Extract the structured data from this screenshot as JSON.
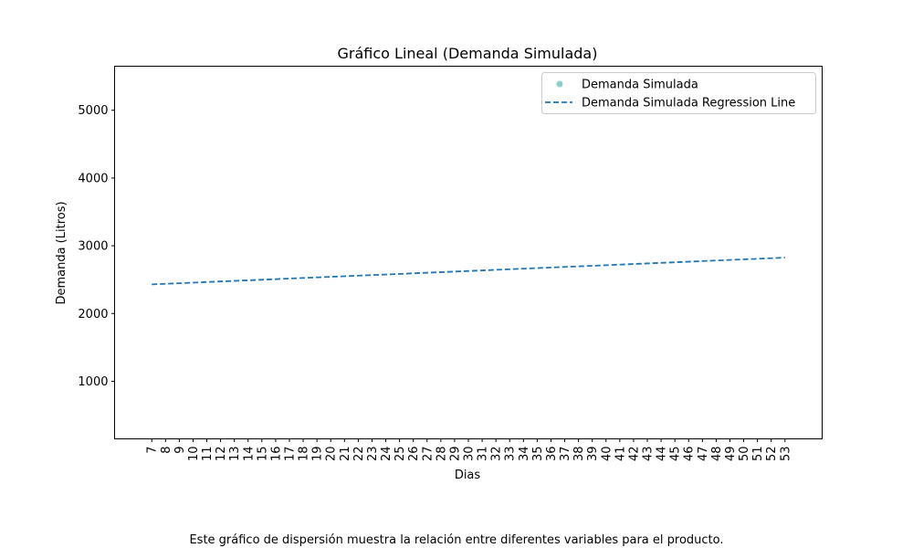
{
  "chart_data": {
    "type": "scatter",
    "title": "Gráfico Lineal (Demanda Simulada)",
    "xlabel": "Dias",
    "ylabel": "Demanda (Litros)",
    "x_ticks": [
      "7",
      "8",
      "9",
      "10",
      "11",
      "12",
      "13",
      "14",
      "15",
      "16",
      "17",
      "18",
      "19",
      "20",
      "21",
      "22",
      "23",
      "24",
      "25",
      "26",
      "27",
      "28",
      "29",
      "30",
      "31",
      "32",
      "33",
      "34",
      "35",
      "36",
      "37",
      "38",
      "39",
      "40",
      "41",
      "42",
      "43",
      "44",
      "45",
      "46",
      "47",
      "48",
      "49",
      "50",
      "51",
      "52",
      "53"
    ],
    "xlim": [
      4.3,
      55.7
    ],
    "ylim": [
      150,
      5650
    ],
    "y_ticks": [
      1000,
      2000,
      3000,
      4000,
      5000
    ],
    "grid": false,
    "legend_position": "top-right",
    "series": [
      {
        "name": "Demanda Simulada",
        "kind": "scatter",
        "color": "#8ecfc9",
        "x": [],
        "y": []
      },
      {
        "name": "Demanda Simulada Regression Line",
        "kind": "line",
        "style": "dashed",
        "color": "#1f77b4",
        "x": [
          7,
          53
        ],
        "y": [
          2430,
          2825
        ]
      }
    ]
  },
  "caption": "Este gráfico de dispersión muestra la relación entre diferentes variables para el producto."
}
